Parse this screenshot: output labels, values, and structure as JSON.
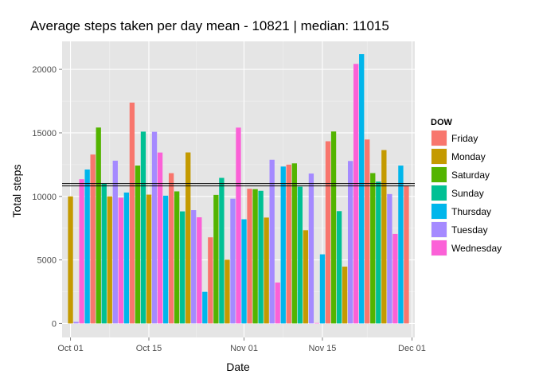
{
  "chart_data": {
    "type": "bar",
    "title": "Average steps taken per day  mean - 10821 | median: 11015",
    "xlabel": "Date",
    "ylabel": "Total steps",
    "x_start": "2012-10-01",
    "ylim": [
      -1100,
      22200
    ],
    "xlim_days": [
      -1.5,
      61.5
    ],
    "y_ticks": [
      0,
      5000,
      10000,
      15000,
      20000
    ],
    "y_tick_labels": [
      "0",
      "5000",
      "10000",
      "15000",
      "20000"
    ],
    "x_ticks": [
      {
        "day": 0,
        "label": "Oct 01"
      },
      {
        "day": 14,
        "label": "Oct 15"
      },
      {
        "day": 31,
        "label": "Nov 01"
      },
      {
        "day": 45,
        "label": "Nov 15"
      },
      {
        "day": 61,
        "label": "Dec 01"
      }
    ],
    "hlines": [
      {
        "name": "mean",
        "value": 10821
      },
      {
        "name": "median",
        "value": 11015
      }
    ],
    "grid": true,
    "legend": {
      "title": "DOW",
      "placement": "right",
      "entries": [
        {
          "label": "Friday",
          "color": "#F8766D"
        },
        {
          "label": "Monday",
          "color": "#C49A00"
        },
        {
          "label": "Saturday",
          "color": "#53B400"
        },
        {
          "label": "Sunday",
          "color": "#00C094"
        },
        {
          "label": "Thursday",
          "color": "#00B6EB"
        },
        {
          "label": "Tuesday",
          "color": "#A58AFF"
        },
        {
          "label": "Wednesday",
          "color": "#FB61D7"
        }
      ]
    },
    "x_dates": [
      "2012-10-01",
      "2012-10-02",
      "2012-10-03",
      "2012-10-04",
      "2012-10-05",
      "2012-10-06",
      "2012-10-07",
      "2012-10-08",
      "2012-10-09",
      "2012-10-10",
      "2012-10-11",
      "2012-10-12",
      "2012-10-13",
      "2012-10-14",
      "2012-10-15",
      "2012-10-16",
      "2012-10-17",
      "2012-10-18",
      "2012-10-19",
      "2012-10-20",
      "2012-10-21",
      "2012-10-22",
      "2012-10-23",
      "2012-10-24",
      "2012-10-25",
      "2012-10-26",
      "2012-10-27",
      "2012-10-28",
      "2012-10-29",
      "2012-10-30",
      "2012-10-31",
      "2012-11-01",
      "2012-11-02",
      "2012-11-03",
      "2012-11-04",
      "2012-11-05",
      "2012-11-06",
      "2012-11-07",
      "2012-11-08",
      "2012-11-09",
      "2012-11-10",
      "2012-11-11",
      "2012-11-12",
      "2012-11-13",
      "2012-11-14",
      "2012-11-15",
      "2012-11-16",
      "2012-11-17",
      "2012-11-18",
      "2012-11-19",
      "2012-11-20",
      "2012-11-21",
      "2012-11-22",
      "2012-11-23",
      "2012-11-24",
      "2012-11-25",
      "2012-11-26",
      "2012-11-27",
      "2012-11-28",
      "2012-11-29",
      "2012-11-30"
    ],
    "values": [
      10000,
      126,
      11352,
      12116,
      13294,
      15420,
      11015,
      10000,
      12811,
      9900,
      10304,
      17382,
      12426,
      15098,
      10139,
      15084,
      13452,
      10056,
      11829,
      10395,
      8821,
      13460,
      8918,
      8355,
      2492,
      6778,
      10119,
      11458,
      5018,
      9819,
      15414,
      8200,
      10600,
      10571,
      10439,
      8334,
      12883,
      3219,
      12350,
      12500,
      12600,
      10765,
      7336,
      11800,
      41,
      5441,
      14339,
      15110,
      8841,
      4472,
      12787,
      20427,
      21194,
      14478,
      11834,
      11162,
      13646,
      10183,
      7047,
      12426,
      10821
    ],
    "dow": [
      "Monday",
      "Tuesday",
      "Wednesday",
      "Thursday",
      "Friday",
      "Saturday",
      "Sunday",
      "Monday",
      "Tuesday",
      "Wednesday",
      "Thursday",
      "Friday",
      "Saturday",
      "Sunday",
      "Monday",
      "Tuesday",
      "Wednesday",
      "Thursday",
      "Friday",
      "Saturday",
      "Sunday",
      "Monday",
      "Tuesday",
      "Wednesday",
      "Thursday",
      "Friday",
      "Saturday",
      "Sunday",
      "Monday",
      "Tuesday",
      "Wednesday",
      "Thursday",
      "Friday",
      "Saturday",
      "Sunday",
      "Monday",
      "Tuesday",
      "Wednesday",
      "Thursday",
      "Friday",
      "Saturday",
      "Sunday",
      "Monday",
      "Tuesday",
      "Wednesday",
      "Thursday",
      "Friday",
      "Saturday",
      "Sunday",
      "Monday",
      "Tuesday",
      "Wednesday",
      "Thursday",
      "Friday",
      "Saturday",
      "Sunday",
      "Monday",
      "Tuesday",
      "Wednesday",
      "Thursday",
      "Friday"
    ]
  }
}
